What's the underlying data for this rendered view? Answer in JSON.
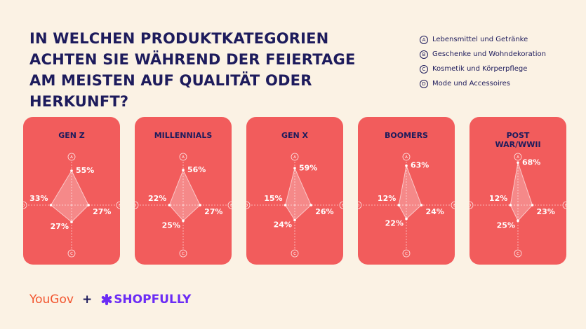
{
  "title": "IN WELCHEN PRODUKTKATEGORIEN ACHTEN SIE WÄHREND DER FEIERTAGE AM MEISTEN AUF QUALITÄT ODER HERKUNFT?",
  "legend": [
    {
      "key": "A",
      "label": "Lebensmittel und Getränke"
    },
    {
      "key": "B",
      "label": "Geschenke und Wohndekoration"
    },
    {
      "key": "C",
      "label": "Kosmetik und Körperpflege"
    },
    {
      "key": "D",
      "label": "Mode und Accessoires"
    }
  ],
  "footer": {
    "brand1": "YouGov",
    "plus": "+",
    "brand2": "SHOPFULLY"
  },
  "chart_data": [
    {
      "type": "radar",
      "title": "GEN Z",
      "categories": [
        "A",
        "B",
        "C",
        "D"
      ],
      "values": [
        55,
        27,
        27,
        33
      ],
      "value_labels": [
        "55%",
        "27%",
        "27%",
        "33%"
      ],
      "rlim": [
        0,
        75
      ],
      "color": "#ffffff"
    },
    {
      "type": "radar",
      "title": "MILLENNIALS",
      "categories": [
        "A",
        "B",
        "C",
        "D"
      ],
      "values": [
        56,
        27,
        25,
        22
      ],
      "value_labels": [
        "56%",
        "27%",
        "25%",
        "22%"
      ],
      "rlim": [
        0,
        75
      ],
      "color": "#ffffff"
    },
    {
      "type": "radar",
      "title": "GEN X",
      "categories": [
        "A",
        "B",
        "C",
        "D"
      ],
      "values": [
        59,
        26,
        24,
        15
      ],
      "value_labels": [
        "59%",
        "26%",
        "24%",
        "15%"
      ],
      "rlim": [
        0,
        75
      ],
      "color": "#ffffff"
    },
    {
      "type": "radar",
      "title": "BOOMERS",
      "categories": [
        "A",
        "B",
        "C",
        "D"
      ],
      "values": [
        63,
        24,
        22,
        12
      ],
      "value_labels": [
        "63%",
        "24%",
        "22%",
        "12%"
      ],
      "rlim": [
        0,
        75
      ],
      "color": "#ffffff"
    },
    {
      "type": "radar",
      "title": "POST WAR/WWII",
      "categories": [
        "A",
        "B",
        "C",
        "D"
      ],
      "values": [
        68,
        23,
        25,
        12
      ],
      "value_labels": [
        "68%",
        "23%",
        "25%",
        "12%"
      ],
      "rlim": [
        0,
        75
      ],
      "color": "#ffffff"
    }
  ]
}
